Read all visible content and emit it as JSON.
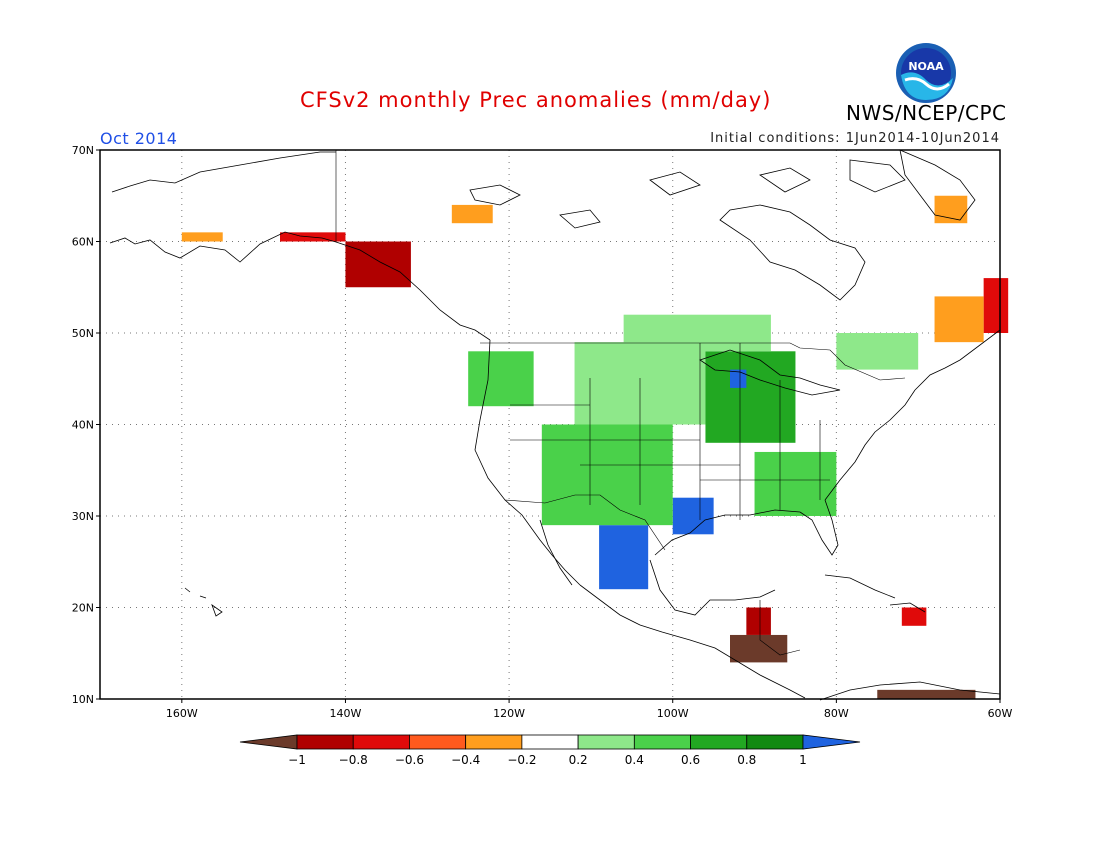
{
  "header": {
    "title": "CFSv2 monthly Prec anomalies (mm/day)",
    "org": "NWS/NCEP/CPC",
    "month": "Oct 2014",
    "init": "Initial conditions: 1Jun2014-10Jun2014",
    "logo_text": "NOAA"
  },
  "axes": {
    "lat_labels": [
      "70N",
      "60N",
      "50N",
      "40N",
      "30N",
      "20N",
      "10N"
    ],
    "lon_labels": [
      "160W",
      "140W",
      "120W",
      "100W",
      "80W",
      "60W"
    ],
    "lon_range": [
      -170,
      -60
    ],
    "lat_range": [
      10,
      70
    ]
  },
  "legend": {
    "levels": [
      "-1",
      "-0.8",
      "-0.6",
      "-0.4",
      "-0.2",
      "0.2",
      "0.4",
      "0.6",
      "0.8",
      "1"
    ],
    "colors": [
      "#6b3a2a",
      "#b00000",
      "#e00a0a",
      "#ff5a1e",
      "#ff9e1e",
      "#ffffff",
      "#8ee88a",
      "#4ad14a",
      "#22a822",
      "#128a12",
      "#1f63e0"
    ]
  },
  "anomaly_regions": [
    {
      "name": "alaska-panhandle",
      "category": 1,
      "lon": [
        -140,
        -132
      ],
      "lat": [
        55,
        60
      ]
    },
    {
      "name": "southern-alaska-coast",
      "category": 2,
      "lon": [
        -148,
        -140
      ],
      "lat": [
        60,
        61
      ]
    },
    {
      "name": "western-alaska",
      "category": 4,
      "lon": [
        -160,
        -155
      ],
      "lat": [
        60,
        61
      ]
    },
    {
      "name": "hudson-bay-north",
      "category": 4,
      "lon": [
        -127,
        -122
      ],
      "lat": [
        62,
        64
      ]
    },
    {
      "name": "baffin-south",
      "category": 4,
      "lon": [
        -68,
        -64
      ],
      "lat": [
        62,
        65
      ]
    },
    {
      "name": "labrador-east",
      "category": 2,
      "lon": [
        -62,
        -59
      ],
      "lat": [
        50,
        56
      ]
    },
    {
      "name": "labrador-orange",
      "category": 4,
      "lon": [
        -68,
        -62
      ],
      "lat": [
        49,
        54
      ]
    },
    {
      "name": "northern-plains",
      "category": 6,
      "lon": [
        -112,
        -96
      ],
      "lat": [
        40,
        49
      ]
    },
    {
      "name": "great-lakes",
      "category": 8,
      "lon": [
        -96,
        -85
      ],
      "lat": [
        38,
        48
      ]
    },
    {
      "name": "upper-midwest-blue",
      "category": 10,
      "lon": [
        -93,
        -91
      ],
      "lat": [
        44,
        46
      ]
    },
    {
      "name": "mexico-northwest-blue",
      "category": 10,
      "lon": [
        -109,
        -103
      ],
      "lat": [
        22,
        29
      ]
    },
    {
      "name": "texas-blue",
      "category": 10,
      "lon": [
        -100,
        -95
      ],
      "lat": [
        28,
        32
      ]
    },
    {
      "name": "southwest-green",
      "category": 7,
      "lon": [
        -116,
        -100
      ],
      "lat": [
        29,
        40
      ]
    },
    {
      "name": "southeast-green",
      "category": 7,
      "lon": [
        -90,
        -80
      ],
      "lat": [
        30,
        37
      ]
    },
    {
      "name": "pacific-northwest-green",
      "category": 7,
      "lon": [
        -125,
        -117
      ],
      "lat": [
        42,
        48
      ]
    },
    {
      "name": "central-america-brown",
      "category": 0,
      "lon": [
        -93,
        -86
      ],
      "lat": [
        14,
        17
      ]
    },
    {
      "name": "central-america-red",
      "category": 1,
      "lon": [
        -91,
        -88
      ],
      "lat": [
        17,
        20
      ]
    },
    {
      "name": "caribbean-red",
      "category": 2,
      "lon": [
        -72,
        -69
      ],
      "lat": [
        18,
        20
      ]
    },
    {
      "name": "venezuela-brown",
      "category": 0,
      "lon": [
        -75,
        -63
      ],
      "lat": [
        10,
        11
      ]
    },
    {
      "name": "quebec-green",
      "category": 6,
      "lon": [
        -80,
        -70
      ],
      "lat": [
        46,
        50
      ]
    },
    {
      "name": "canada-prairie-green",
      "category": 6,
      "lon": [
        -106,
        -88
      ],
      "lat": [
        48,
        52
      ]
    }
  ]
}
